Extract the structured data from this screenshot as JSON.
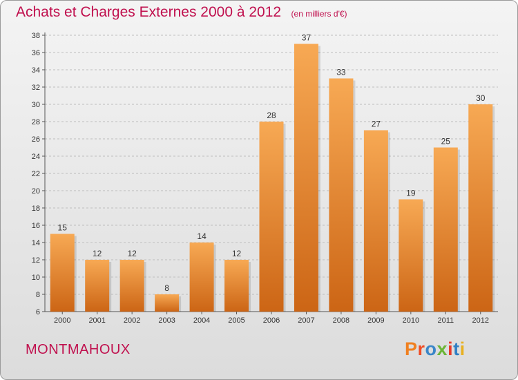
{
  "header": {
    "title": "Achats et Charges Externes 2000 à 2012",
    "subtitle": "(en milliers d'€)"
  },
  "footer": {
    "commune": "MONTMAHOUX",
    "logo_text": "Proxiti"
  },
  "colors": {
    "title": "#c0104e",
    "bar_light": "#f7a954",
    "bar_dark": "#cc6515",
    "logo_letters": [
      "#f08020",
      "#ef4b24",
      "#3a86c8",
      "#6bb536",
      "#e83a2a",
      "#2f7fc4",
      "#e8b020"
    ]
  },
  "chart_data": {
    "type": "bar",
    "categories": [
      "2000",
      "2001",
      "2002",
      "2003",
      "2004",
      "2005",
      "2006",
      "2007",
      "2008",
      "2009",
      "2010",
      "2011",
      "2012"
    ],
    "values": [
      15,
      12,
      12,
      8,
      14,
      12,
      28,
      37,
      33,
      27,
      19,
      25,
      30
    ],
    "value_labels": [
      "15",
      "12",
      "12",
      "8",
      "14",
      "12",
      "28",
      "37",
      "33",
      "27",
      "19",
      "25",
      "30"
    ],
    "ylim": [
      6,
      38
    ],
    "yticks": [
      6,
      8,
      10,
      12,
      14,
      16,
      18,
      20,
      22,
      24,
      26,
      28,
      30,
      32,
      34,
      36,
      38
    ],
    "ytick_labels": [
      "6",
      "8",
      "10",
      "12",
      "14",
      "16",
      "18",
      "20",
      "22",
      "24",
      "26",
      "28",
      "30",
      "32",
      "34",
      "36",
      "38"
    ],
    "grid": "horizontal dashed",
    "title": "Achats et Charges Externes 2000 à 2012",
    "xlabel": "",
    "ylabel": ""
  }
}
